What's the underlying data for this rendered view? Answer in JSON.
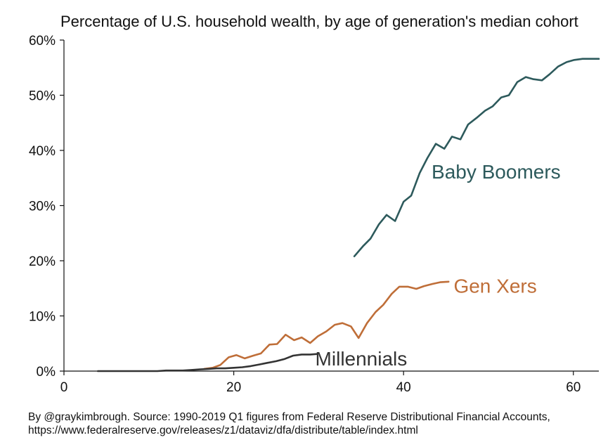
{
  "chart_data": {
    "type": "line",
    "title": "Percentage of U.S. household wealth, by age of generation's median cohort",
    "xlabel": "",
    "ylabel": "",
    "xlim": [
      0,
      63
    ],
    "ylim": [
      0,
      60
    ],
    "x_ticks": [
      0,
      20,
      40,
      60
    ],
    "y_ticks": [
      0,
      10,
      20,
      30,
      40,
      50,
      60
    ],
    "y_tick_labels": [
      "0%",
      "10%",
      "20%",
      "30%",
      "40%",
      "50%",
      "60%"
    ],
    "grid": false,
    "legend": "direct-labels",
    "series": [
      {
        "name": "Baby Boomers",
        "color": "#2d5a5c",
        "x": [
          34.2,
          35.2,
          36.1,
          37.1,
          38.0,
          39.0,
          40.0,
          40.9,
          41.9,
          42.8,
          43.8,
          44.8,
          45.7,
          46.7,
          47.6,
          48.6,
          49.6,
          50.5,
          51.5,
          52.4,
          53.4,
          54.4,
          55.3,
          56.3,
          57.2,
          58.2,
          59.2,
          60.1,
          61.1,
          62.0,
          63.0
        ],
        "y": [
          20.8,
          22.6,
          24.0,
          26.6,
          28.3,
          27.2,
          30.7,
          31.8,
          35.9,
          38.6,
          41.2,
          40.3,
          42.5,
          42.0,
          44.7,
          45.9,
          47.2,
          48.0,
          49.6,
          50.0,
          52.4,
          53.3,
          52.9,
          52.7,
          53.8,
          55.2,
          56.0,
          56.4,
          56.6,
          56.6,
          56.6
        ]
      },
      {
        "name": "Gen Xers",
        "color": "#bf6e38",
        "x": [
          16.5,
          17.5,
          18.4,
          19.4,
          20.3,
          21.3,
          22.3,
          23.2,
          24.2,
          25.1,
          26.1,
          27.1,
          28.0,
          29.0,
          29.9,
          30.9,
          31.9,
          32.8,
          33.8,
          34.7,
          35.7,
          36.7,
          37.6,
          38.6,
          39.5,
          40.5,
          41.5,
          42.4,
          43.4,
          44.3,
          45.3
        ],
        "y": [
          0.4,
          0.6,
          1.1,
          2.5,
          2.9,
          2.3,
          2.8,
          3.2,
          4.8,
          4.9,
          6.6,
          5.6,
          6.1,
          5.1,
          6.3,
          7.2,
          8.4,
          8.7,
          8.1,
          6.0,
          8.7,
          10.7,
          12.0,
          14.0,
          15.3,
          15.3,
          14.9,
          15.4,
          15.8,
          16.1,
          16.2
        ]
      },
      {
        "name": "Millennials",
        "color": "#333333",
        "x": [
          4.0,
          5.0,
          6.0,
          7.0,
          8.0,
          9.0,
          10.0,
          11.0,
          12.0,
          13.0,
          14.0,
          15.0,
          16.0,
          17.0,
          18.0,
          19.0,
          20.0,
          21.0,
          22.0,
          23.0,
          24.0,
          25.0,
          26.0,
          27.0,
          28.0,
          29.0,
          29.8
        ],
        "y": [
          0.0,
          0.0,
          0.0,
          0.0,
          0.0,
          0.0,
          0.0,
          0.0,
          0.1,
          0.1,
          0.1,
          0.2,
          0.3,
          0.4,
          0.5,
          0.5,
          0.6,
          0.7,
          0.9,
          1.2,
          1.5,
          1.8,
          2.2,
          2.8,
          3.0,
          3.0,
          3.1
        ]
      }
    ],
    "source_line_1": "By @graykimbrough. Source: 1990-2019 Q1 figures from Federal Reserve Distributional Financial Accounts,",
    "source_line_2": "https://www.federalreserve.gov/releases/z1/dataviz/dfa/distribute/table/index.html"
  }
}
